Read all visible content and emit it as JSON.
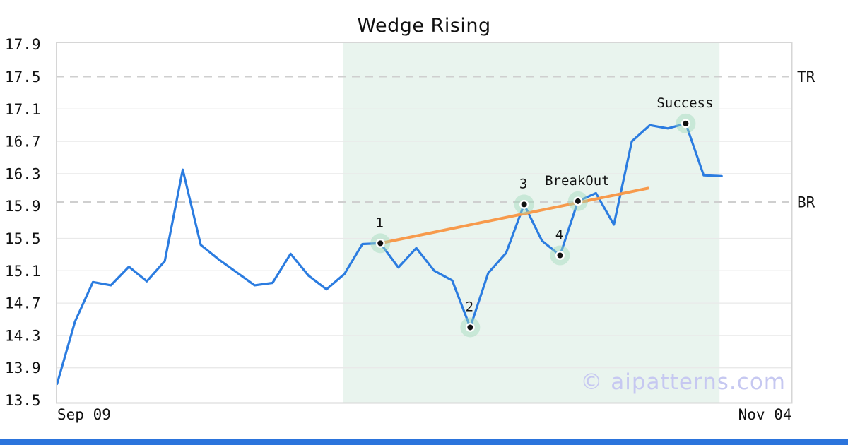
{
  "page": {
    "title": "Wedge Rising",
    "watermark": "© aipatterns.com"
  },
  "colors": {
    "line": "#2b7ce0",
    "trend": "#f79a4c",
    "region": "#e9f4ee",
    "marker_halo": "#9fd9bb",
    "marker_ring": "#ffffff",
    "marker_dot": "#111111",
    "grid": "#e9e9e9",
    "dashed_level": "#cfcfcf",
    "border": "#d6d6d6",
    "text": "#111111",
    "watermark_color": "#c6c8f1",
    "bottom_bar": "#2b74dc"
  },
  "chart_data": {
    "type": "line",
    "title": "Wedge Rising",
    "xlabel": "",
    "ylabel": "",
    "x_tick_labels": [
      "Sep 09",
      "Nov 04"
    ],
    "y_ticks": [
      17.9,
      17.5,
      17.1,
      16.7,
      16.3,
      15.9,
      15.5,
      15.1,
      14.7,
      14.3,
      13.9,
      13.5
    ],
    "ylim": [
      13.44,
      17.92
    ],
    "grid": true,
    "legend_position": "none",
    "values": [
      13.7,
      14.47,
      14.96,
      14.92,
      15.15,
      14.97,
      15.22,
      16.35,
      15.42,
      15.24,
      15.08,
      14.92,
      14.95,
      15.31,
      15.04,
      14.87,
      15.06,
      15.43,
      15.44,
      15.14,
      15.38,
      15.1,
      14.98,
      14.4,
      15.07,
      15.32,
      15.92,
      15.47,
      15.29,
      15.96,
      16.06,
      15.67,
      16.7,
      16.9,
      16.86,
      16.92,
      16.28,
      16.27
    ],
    "highlight_region": {
      "start_index": 16,
      "end_index": 37
    },
    "levels": [
      {
        "label": "TR",
        "value": 17.5
      },
      {
        "label": "BR",
        "value": 15.95
      }
    ],
    "trendline": {
      "from_index": 18,
      "from_value": 15.44,
      "to_index": 32.9,
      "to_value": 16.12
    },
    "markers": [
      {
        "index": 18,
        "value": 15.44,
        "label": "1"
      },
      {
        "index": 23,
        "value": 14.4,
        "label": "2"
      },
      {
        "index": 26,
        "value": 15.92,
        "label": "3"
      },
      {
        "index": 28,
        "value": 15.29,
        "label": "4"
      },
      {
        "index": 29,
        "value": 15.96,
        "label": "BreakOut"
      },
      {
        "index": 35,
        "value": 16.92,
        "label": "Success"
      }
    ]
  }
}
